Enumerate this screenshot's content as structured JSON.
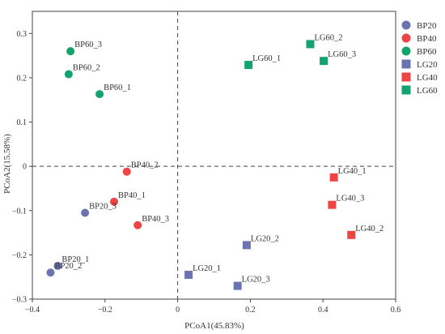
{
  "chart_data": {
    "type": "scatter",
    "title": "",
    "xlabel": "PCoA1(45.83%)",
    "ylabel": "PCoA2(15.58%)",
    "xlim": [
      -0.4,
      0.6
    ],
    "ylim": [
      -0.3,
      0.35
    ],
    "xticks": [
      -0.4,
      -0.2,
      0,
      0.2,
      0.4,
      0.6
    ],
    "yticks": [
      -0.3,
      -0.2,
      -0.1,
      0,
      0.1,
      0.2,
      0.3
    ],
    "xtick_labels": [
      "−0.4",
      "−0.2",
      "0",
      "0.2",
      "0.4",
      "0.6"
    ],
    "ytick_labels": [
      "−0.3",
      "−0.2",
      "−0.1",
      "0",
      "0.1",
      "0.2",
      "0.3"
    ],
    "grid": false,
    "reference_lines": {
      "x": 0,
      "y": 0,
      "style": "dashed"
    },
    "legend_position": "right",
    "series": [
      {
        "name": "BP20",
        "marker": "circle",
        "color": "#6b74b0",
        "points": [
          {
            "label": "BP20_1",
            "x": -0.33,
            "y": -0.225
          },
          {
            "label": "BP20_2",
            "x": -0.35,
            "y": -0.24
          },
          {
            "label": "BP20_3",
            "x": -0.255,
            "y": -0.105
          }
        ]
      },
      {
        "name": "BP40",
        "marker": "circle",
        "color": "#ee4444",
        "points": [
          {
            "label": "BP40_1",
            "x": -0.175,
            "y": -0.08
          },
          {
            "label": "BP40_2",
            "x": -0.14,
            "y": -0.012
          },
          {
            "label": "BP40_3",
            "x": -0.11,
            "y": -0.133
          }
        ]
      },
      {
        "name": "BP60",
        "marker": "circle",
        "color": "#13a36f",
        "points": [
          {
            "label": "BP60_1",
            "x": -0.215,
            "y": 0.163
          },
          {
            "label": "BP60_2",
            "x": -0.3,
            "y": 0.208
          },
          {
            "label": "BP60_3",
            "x": -0.295,
            "y": 0.26
          }
        ]
      },
      {
        "name": "LG20",
        "marker": "square",
        "color": "#6b74b0",
        "points": [
          {
            "label": "LG20_1",
            "x": 0.03,
            "y": -0.245
          },
          {
            "label": "LG20_2",
            "x": 0.19,
            "y": -0.178
          },
          {
            "label": "LG20_3",
            "x": 0.165,
            "y": -0.27
          }
        ]
      },
      {
        "name": "LG40",
        "marker": "square",
        "color": "#ee4444",
        "points": [
          {
            "label": "LG40_1",
            "x": 0.43,
            "y": -0.025
          },
          {
            "label": "LG40_2",
            "x": 0.478,
            "y": -0.155
          },
          {
            "label": "LG40_3",
            "x": 0.425,
            "y": -0.087
          }
        ]
      },
      {
        "name": "LG60",
        "marker": "square",
        "color": "#13a36f",
        "points": [
          {
            "label": "LG60_1",
            "x": 0.195,
            "y": 0.229
          },
          {
            "label": "LG60_2",
            "x": 0.365,
            "y": 0.276
          },
          {
            "label": "LG60_3",
            "x": 0.402,
            "y": 0.238
          }
        ]
      }
    ]
  }
}
